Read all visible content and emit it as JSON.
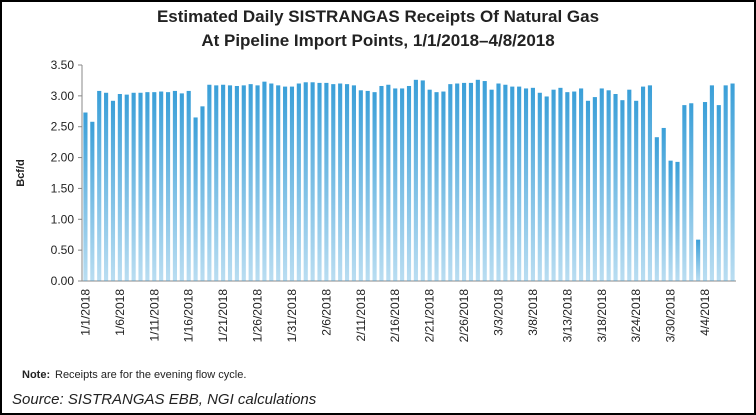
{
  "chart_data": {
    "type": "bar",
    "title": [
      "Estimated Daily SISTRANGAS Receipts Of Natural Gas",
      "At Pipeline Import Points, 1/1/2018–4/8/2018"
    ],
    "y_label": "Bcf/d",
    "note_label": "Note:",
    "note": "Receipts are for the evening flow cycle.",
    "source": "Source: SISTRANGAS EBB, NGI calculations",
    "color": "#3a9fd8",
    "grid": false,
    "ylim": [
      0,
      3.5
    ],
    "yticks": [
      {
        "value": 0,
        "label": "0.00"
      },
      {
        "value": 0.5,
        "label": "0.50"
      },
      {
        "value": 1,
        "label": "1.00"
      },
      {
        "value": 1.5,
        "label": "1.50"
      },
      {
        "value": 2,
        "label": "2.00"
      },
      {
        "value": 2.5,
        "label": "2.50"
      },
      {
        "value": 3,
        "label": "3.00"
      },
      {
        "value": 3.5,
        "label": "3.50"
      }
    ],
    "categories": [
      "1/1/2018",
      null,
      null,
      null,
      null,
      "1/6/2018",
      null,
      null,
      null,
      null,
      "1/11/2018",
      null,
      null,
      null,
      null,
      "1/16/2018",
      null,
      null,
      null,
      null,
      "1/21/2018",
      null,
      null,
      null,
      null,
      "1/26/2018",
      null,
      null,
      null,
      null,
      "1/31/2018",
      null,
      null,
      null,
      null,
      "2/6/2018",
      null,
      null,
      null,
      null,
      "2/11/2018",
      null,
      null,
      null,
      null,
      "2/16/2018",
      null,
      null,
      null,
      null,
      "2/21/2018",
      null,
      null,
      null,
      null,
      "2/26/2018",
      null,
      null,
      null,
      null,
      "3/3/2018",
      null,
      null,
      null,
      null,
      "3/8/2018",
      null,
      null,
      null,
      null,
      "3/13/2018",
      null,
      null,
      null,
      null,
      "3/18/2018",
      null,
      null,
      null,
      null,
      "3/24/2018",
      null,
      null,
      null,
      null,
      "3/30/2018",
      null,
      null,
      null,
      null,
      "4/4/2018",
      null,
      null,
      null,
      null
    ],
    "values": [
      2.73,
      2.58,
      3.08,
      3.05,
      2.92,
      3.03,
      3.02,
      3.05,
      3.05,
      3.06,
      3.06,
      3.07,
      3.06,
      3.08,
      3.04,
      3.08,
      2.65,
      2.83,
      3.18,
      3.17,
      3.18,
      3.17,
      3.16,
      3.17,
      3.19,
      3.17,
      3.23,
      3.2,
      3.17,
      3.15,
      3.15,
      3.2,
      3.22,
      3.22,
      3.21,
      3.21,
      3.19,
      3.2,
      3.19,
      3.17,
      3.09,
      3.08,
      3.06,
      3.16,
      3.18,
      3.12,
      3.12,
      3.16,
      3.26,
      3.25,
      3.1,
      3.06,
      3.07,
      3.19,
      3.2,
      3.21,
      3.21,
      3.26,
      3.24,
      3.1,
      3.2,
      3.18,
      3.15,
      3.15,
      3.12,
      3.13,
      3.05,
      2.99,
      3.1,
      3.13,
      3.06,
      3.07,
      3.12,
      2.92,
      2.98,
      3.12,
      3.09,
      3.03,
      2.93,
      3.1,
      2.92,
      3.15,
      3.17,
      2.33,
      2.48,
      1.95,
      1.93,
      2.85,
      2.88,
      0.67,
      2.9,
      3.17,
      2.85,
      3.17,
      3.2
    ]
  }
}
